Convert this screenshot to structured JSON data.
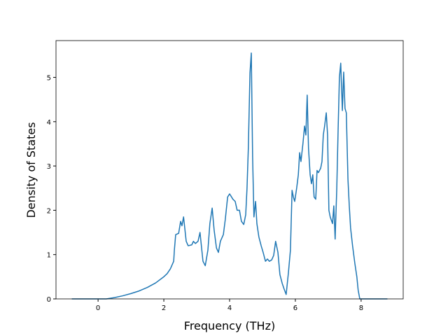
{
  "chart_data": {
    "type": "line",
    "xlabel": "Frequency (THz)",
    "ylabel": "Density of States",
    "x": [
      -0.8,
      0,
      0.25,
      0.5,
      0.75,
      1.0,
      1.25,
      1.5,
      1.75,
      2.0,
      2.1,
      2.2,
      2.3,
      2.32,
      2.36,
      2.45,
      2.51,
      2.55,
      2.6,
      2.68,
      2.74,
      2.85,
      2.9,
      2.96,
      3.04,
      3.1,
      3.19,
      3.26,
      3.34,
      3.4,
      3.47,
      3.53,
      3.6,
      3.66,
      3.72,
      3.81,
      3.87,
      3.94,
      4.0,
      4.06,
      4.1,
      4.17,
      4.23,
      4.3,
      4.36,
      4.43,
      4.49,
      4.53,
      4.57,
      4.62,
      4.66,
      4.7,
      4.74,
      4.79,
      4.83,
      4.89,
      4.96,
      5.02,
      5.09,
      5.15,
      5.21,
      5.28,
      5.34,
      5.4,
      5.47,
      5.53,
      5.6,
      5.66,
      5.72,
      5.79,
      5.85,
      5.9,
      5.94,
      5.98,
      6.04,
      6.09,
      6.13,
      6.17,
      6.23,
      6.28,
      6.32,
      6.36,
      6.4,
      6.45,
      6.49,
      6.53,
      6.57,
      6.62,
      6.66,
      6.7,
      6.77,
      6.81,
      6.85,
      6.89,
      6.94,
      6.98,
      7.02,
      7.06,
      7.13,
      7.17,
      7.21,
      7.26,
      7.3,
      7.34,
      7.38,
      7.43,
      7.47,
      7.51,
      7.55,
      7.6,
      7.64,
      7.68,
      7.74,
      7.81,
      7.87,
      7.91,
      7.96,
      8.8
    ],
    "series": [
      {
        "name": "DOS",
        "color": "#1f77b4",
        "values": [
          0,
          0,
          0,
          0.03,
          0.07,
          0.12,
          0.18,
          0.26,
          0.36,
          0.5,
          0.57,
          0.68,
          0.85,
          1.1,
          1.45,
          1.48,
          1.75,
          1.65,
          1.85,
          1.3,
          1.2,
          1.22,
          1.3,
          1.25,
          1.3,
          1.5,
          0.85,
          0.75,
          1.1,
          1.7,
          2.05,
          1.55,
          1.15,
          1.05,
          1.3,
          1.45,
          1.8,
          2.3,
          2.37,
          2.3,
          2.25,
          2.2,
          2.0,
          2.0,
          1.75,
          1.68,
          1.9,
          2.5,
          3.4,
          5.1,
          5.55,
          3.2,
          1.85,
          2.2,
          1.7,
          1.4,
          1.2,
          1.05,
          0.85,
          0.9,
          0.85,
          0.88,
          0.98,
          1.3,
          1.05,
          0.55,
          0.35,
          0.22,
          0.1,
          0.6,
          1.1,
          2.45,
          2.3,
          2.2,
          2.5,
          2.8,
          3.3,
          3.1,
          3.5,
          3.9,
          3.7,
          4.6,
          3.4,
          2.8,
          2.6,
          2.8,
          2.3,
          2.25,
          2.9,
          2.85,
          2.95,
          3.1,
          3.7,
          3.9,
          4.2,
          3.7,
          2.0,
          1.85,
          1.7,
          2.1,
          1.35,
          2.5,
          3.8,
          5.0,
          5.32,
          4.25,
          5.12,
          4.3,
          4.2,
          2.7,
          2.1,
          1.6,
          1.2,
          0.8,
          0.5,
          0.2,
          0,
          0
        ]
      }
    ],
    "xlim": [
      -1.28,
      9.28
    ],
    "ylim": [
      0,
      5.83
    ],
    "xticks": [
      0,
      2,
      4,
      6,
      8
    ],
    "yticks": [
      0,
      1,
      2,
      3,
      4,
      5
    ]
  }
}
